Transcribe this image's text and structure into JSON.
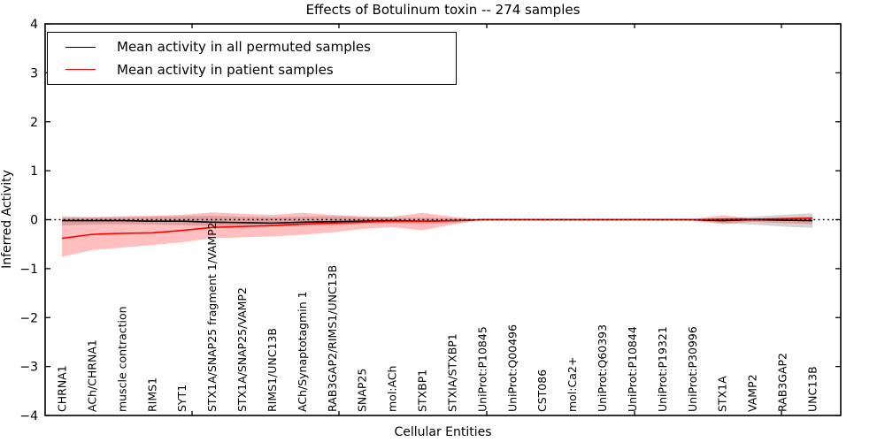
{
  "chart_data": {
    "type": "line",
    "title": "Effects of Botulinum toxin -- 274 samples",
    "xlabel": "Cellular Entities",
    "ylabel": "Inferred Activity",
    "ylim": [
      -4,
      4
    ],
    "yticks": [
      4,
      3,
      2,
      1,
      0,
      -1,
      -2,
      -3,
      -4
    ],
    "ytick_labels": [
      "4",
      "3",
      "2",
      "1",
      "0",
      "−1",
      "−2",
      "−3",
      "−4"
    ],
    "grid": false,
    "legend_position": "upper left",
    "zero_reference_line": {
      "y": 0,
      "style": "dotted",
      "color": "#000000"
    },
    "categories": [
      "CHRNA1",
      "ACh/CHRNA1",
      "muscle contraction",
      "RIMS1",
      "SYT1",
      "STX1A/SNAP25 fragment 1/VAMP2",
      "STX1A/SNAP25/VAMP2",
      "RIMS1/UNC13B",
      "ACh/Synaptotagmin 1",
      "RAB3GAP2/RIMS1/UNC13B",
      "SNAP25",
      "mol:ACh",
      "STXBP1",
      "STXIA/STXBP1",
      "UniProt:P10845",
      "UniProt:Q00496",
      "CST086",
      "mol:Ca2+",
      "UniProt:Q60393",
      "UniProt:P10844",
      "UniProt:P19321",
      "UniProt:P30996",
      "STX1A",
      "VAMP2",
      "RAB3GAP2",
      "UNC13B"
    ],
    "series": [
      {
        "name": "Mean activity in all permuted samples",
        "color": "#000000",
        "band_color": "rgba(0,0,0,0.17)",
        "values": [
          -0.02,
          -0.02,
          -0.02,
          -0.03,
          -0.03,
          -0.05,
          -0.06,
          -0.07,
          -0.05,
          -0.04,
          -0.03,
          -0.02,
          -0.03,
          -0.02,
          0,
          0,
          0,
          0,
          0,
          0,
          0,
          0,
          -0.02,
          0,
          -0.01,
          -0.02
        ],
        "band_high": [
          0.07,
          0.05,
          0.05,
          0.06,
          0.07,
          0.08,
          0.06,
          0.05,
          0.06,
          0.07,
          0.05,
          0.04,
          0.04,
          0.03,
          0.005,
          0.005,
          0.005,
          0.005,
          0.005,
          0.005,
          0.005,
          0.01,
          0.03,
          0.06,
          0.1,
          0.13
        ],
        "band_low": [
          -0.12,
          -0.1,
          -0.09,
          -0.1,
          -0.11,
          -0.13,
          -0.14,
          -0.14,
          -0.13,
          -0.12,
          -0.09,
          -0.08,
          -0.09,
          -0.07,
          -0.01,
          -0.01,
          -0.01,
          -0.01,
          -0.01,
          -0.01,
          -0.01,
          -0.02,
          -0.07,
          -0.1,
          -0.14,
          -0.17
        ]
      },
      {
        "name": "Mean activity in patient samples",
        "color": "#ff0000",
        "band_color": "rgba(255,0,0,0.25)",
        "values": [
          -0.38,
          -0.3,
          -0.28,
          -0.27,
          -0.22,
          -0.16,
          -0.14,
          -0.12,
          -0.09,
          -0.07,
          -0.05,
          -0.03,
          -0.03,
          -0.02,
          0,
          0,
          0,
          0,
          0,
          0,
          0,
          0,
          0.01,
          0.01,
          0.02,
          0.03
        ],
        "band_high": [
          0.04,
          0.05,
          0.07,
          0.08,
          0.1,
          0.15,
          0.12,
          0.1,
          0.14,
          0.1,
          0.07,
          0.06,
          0.14,
          0.06,
          0.005,
          0.005,
          0.005,
          0.005,
          0.005,
          0.005,
          0.005,
          0.01,
          0.09,
          0.02,
          0.04,
          0.06
        ],
        "band_low": [
          -0.76,
          -0.62,
          -0.57,
          -0.52,
          -0.46,
          -0.38,
          -0.36,
          -0.34,
          -0.31,
          -0.26,
          -0.19,
          -0.15,
          -0.22,
          -0.1,
          -0.01,
          -0.01,
          -0.01,
          -0.01,
          -0.01,
          -0.01,
          -0.01,
          -0.02,
          -0.09,
          -0.04,
          -0.07,
          -0.09
        ]
      }
    ]
  }
}
